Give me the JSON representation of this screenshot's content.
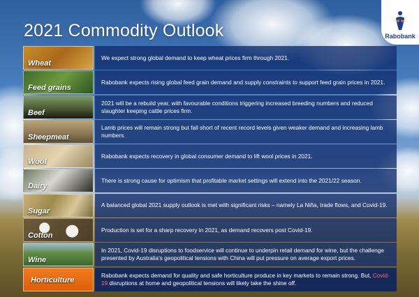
{
  "title": "2021 Commodity Outlook",
  "brand": "Rabobank",
  "rows": [
    {
      "label": "Wheat",
      "text": "We expect strong global demand to keep wheat prices firm through 2021."
    },
    {
      "label": "Feed grains",
      "text": "Rabobank expects rising global feed grain demand and supply constraints to support feed grain prices in 2021."
    },
    {
      "label": "Beef",
      "text": "2021 will be a rebuild year, with favourable conditions triggering increased breeding numbers and reduced slaughter keeping cattle prices firm."
    },
    {
      "label": "Sheepmeat",
      "text": "Lamb prices will remain strong but fall short of recent record levels given weaker demand and increasing lamb numbers."
    },
    {
      "label": "Wool",
      "text": "Rabobank expects recovery in global consumer demand to lift wool prices in 2021."
    },
    {
      "label": "Dairy",
      "text": "There is strong cause for optimism that profitable market settings will extend into the 2021/22 season."
    },
    {
      "label": "Sugar",
      "text": "A balanced global 2021 supply outlook is met with significant risks – namely La Niña, trade flows, and Covid-19."
    },
    {
      "label": "Cotton",
      "text": "Production is set for a sharp recovery in 2021, as demand recovers post Covid-19."
    },
    {
      "label": "Wine",
      "text": "In 2021, Covid-19 disruptions to foodservice will continue to underpin retail demand for wine, but the challenge presented by Australia's geopolitical tensions with China will put pressure on average export prices."
    },
    {
      "label": "Horticulture",
      "text_a": "Rabobank expects demand for quality and safe horticulture produce in key markets to remain strong. But, ",
      "text_red": "Covid-19",
      "text_b": " disruptions at home and geopolitical tensions will likely take the shine off."
    }
  ],
  "colors": {
    "panel": "#122e6e",
    "horticulture_tile": "#f07a1c",
    "brand_blue": "#1c3f94"
  }
}
